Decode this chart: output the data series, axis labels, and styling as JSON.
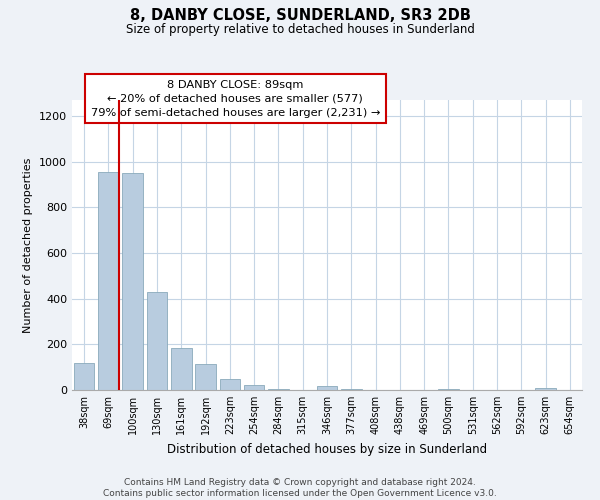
{
  "title": "8, DANBY CLOSE, SUNDERLAND, SR3 2DB",
  "subtitle": "Size of property relative to detached houses in Sunderland",
  "xlabel": "Distribution of detached houses by size in Sunderland",
  "ylabel": "Number of detached properties",
  "categories": [
    "38sqm",
    "69sqm",
    "100sqm",
    "130sqm",
    "161sqm",
    "192sqm",
    "223sqm",
    "254sqm",
    "284sqm",
    "315sqm",
    "346sqm",
    "377sqm",
    "408sqm",
    "438sqm",
    "469sqm",
    "500sqm",
    "531sqm",
    "562sqm",
    "592sqm",
    "623sqm",
    "654sqm"
  ],
  "values": [
    120,
    955,
    950,
    430,
    185,
    115,
    48,
    22,
    5,
    0,
    18,
    5,
    0,
    0,
    0,
    5,
    0,
    0,
    0,
    8,
    0
  ],
  "bar_color": "#b8ccdf",
  "bar_edge_color": "#8aaabb",
  "marker_line_color": "#cc0000",
  "annotation_box_edge_color": "#cc0000",
  "annotation_line1": "8 DANBY CLOSE: 89sqm",
  "annotation_line2": "← 20% of detached houses are smaller (577)",
  "annotation_line3": "79% of semi-detached houses are larger (2,231) →",
  "ylim": [
    0,
    1270
  ],
  "yticks": [
    0,
    200,
    400,
    600,
    800,
    1000,
    1200
  ],
  "footer_line1": "Contains HM Land Registry data © Crown copyright and database right 2024.",
  "footer_line2": "Contains public sector information licensed under the Open Government Licence v3.0.",
  "background_color": "#eef2f7",
  "plot_background_color": "#ffffff",
  "grid_color": "#c5d5e5"
}
